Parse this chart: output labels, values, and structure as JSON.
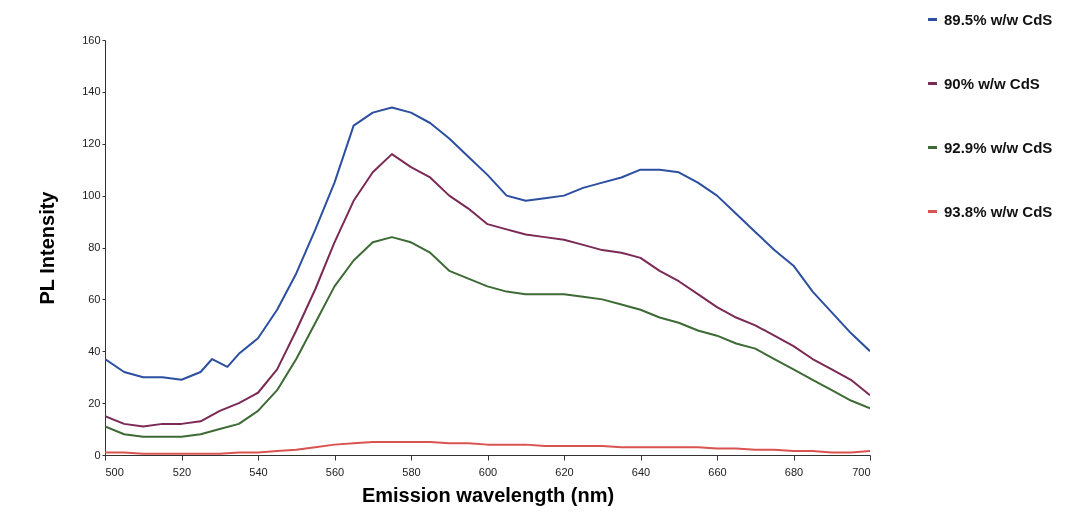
{
  "chart_data": {
    "type": "line",
    "xlabel": "Emission wavelength (nm)",
    "ylabel": "PL Intensity",
    "xlim": [
      500,
      700
    ],
    "ylim": [
      0,
      160
    ],
    "xticks": [
      500,
      520,
      540,
      560,
      580,
      600,
      620,
      640,
      660,
      680,
      700
    ],
    "yticks": [
      0,
      20,
      40,
      60,
      80,
      100,
      120,
      140,
      160
    ],
    "legend": "right",
    "line_style": "solid",
    "x": [
      500,
      505,
      510,
      515,
      520,
      525,
      530,
      535,
      540,
      545,
      550,
      555,
      560,
      565,
      570,
      575,
      580,
      585,
      590,
      595,
      600,
      605,
      610,
      615,
      620,
      625,
      630,
      635,
      640,
      645,
      650,
      655,
      660,
      665,
      670,
      675,
      680,
      685,
      690,
      695,
      700
    ],
    "series": [
      {
        "name": "89.5% w/w CdS",
        "color": "#2c4fa0",
        "x": [
          500,
          505,
          510,
          515,
          520,
          525,
          528,
          532,
          535,
          540,
          545,
          550,
          555,
          560,
          565,
          570,
          575,
          580,
          585,
          590,
          595,
          600,
          605,
          610,
          615,
          620,
          625,
          630,
          635,
          640,
          645,
          650,
          655,
          660,
          665,
          670,
          675,
          680,
          685,
          690,
          695,
          700
        ],
        "values": [
          37,
          32,
          30,
          30,
          29,
          32,
          37,
          34,
          39,
          45,
          56,
          70,
          87,
          105,
          127,
          132,
          134,
          132,
          128,
          122,
          115,
          108,
          100,
          98,
          99,
          100,
          103,
          105,
          107,
          110,
          110,
          109,
          105,
          100,
          93,
          86,
          79,
          73,
          63,
          55,
          47,
          40
        ]
      },
      {
        "name": "90% w/w CdS",
        "color": "#7a2a55",
        "values": [
          15,
          12,
          11,
          12,
          12,
          13,
          17,
          20,
          24,
          33,
          48,
          64,
          82,
          98,
          109,
          116,
          111,
          107,
          100,
          95,
          89,
          87,
          85,
          84,
          83,
          81,
          79,
          78,
          76,
          71,
          67,
          62,
          57,
          53,
          50,
          46,
          42,
          37,
          33,
          29,
          23
        ]
      },
      {
        "name": "92.9% w/w CdS",
        "color": "#3d6a35",
        "values": [
          11,
          8,
          7,
          7,
          7,
          8,
          10,
          12,
          17,
          25,
          37,
          51,
          65,
          75,
          82,
          84,
          82,
          78,
          71,
          68,
          65,
          63,
          62,
          62,
          62,
          61,
          60,
          58,
          56,
          53,
          51,
          48,
          46,
          43,
          41,
          37,
          33,
          29,
          25,
          21,
          18
        ]
      },
      {
        "name": "93.8% w/w CdS",
        "color": "#d9534f",
        "values": [
          1,
          1,
          0.5,
          0.5,
          0.5,
          0.5,
          0.5,
          1,
          1,
          1.5,
          2,
          3,
          4,
          4.5,
          5,
          5,
          5,
          5,
          4.5,
          4.5,
          4,
          4,
          4,
          3.5,
          3.5,
          3.5,
          3.5,
          3,
          3,
          3,
          3,
          3,
          2.5,
          2.5,
          2,
          2,
          1.5,
          1.5,
          1,
          1,
          1.5
        ]
      }
    ]
  }
}
